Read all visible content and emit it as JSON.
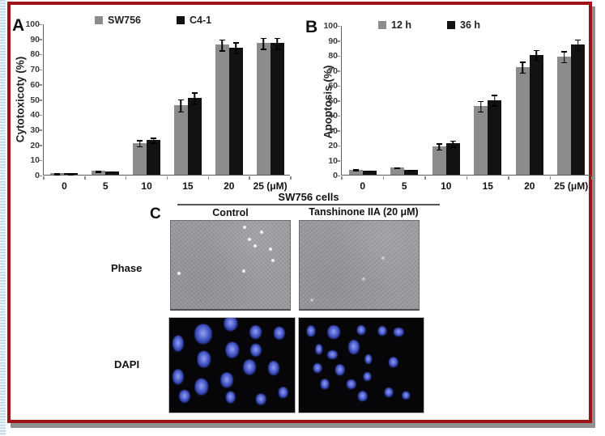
{
  "figure": {
    "border_color": "#9e1216",
    "shadow_color": "#8f8f8f",
    "background": "#ffffff",
    "edge_stripe_color": "#bcd6e6"
  },
  "chart_data": [
    {
      "type": "bar",
      "panel": "A",
      "title": "",
      "xlabel": "",
      "ylabel": "Cytotoxicoty (%)",
      "ylim": [
        0,
        100
      ],
      "ytick_step": 10,
      "grid": false,
      "legend_position": "top",
      "categories": [
        "0",
        "5",
        "10",
        "15",
        "20",
        "25 (μM)"
      ],
      "series": [
        {
          "name": "SW756",
          "color": "#8c8c8c",
          "values": [
            1,
            2.5,
            21,
            46,
            86,
            87
          ],
          "errors": [
            0.8,
            0.8,
            2.5,
            4.5,
            4,
            4
          ]
        },
        {
          "name": "C4-1",
          "color": "#121212",
          "values": [
            1,
            2,
            23,
            51,
            84,
            87
          ],
          "errors": [
            0.8,
            0.6,
            2,
            4,
            4,
            4
          ]
        }
      ]
    },
    {
      "type": "bar",
      "panel": "B",
      "title": "",
      "xlabel": "",
      "ylabel": "Apoptosis (%)",
      "ylim": [
        0,
        100
      ],
      "ytick_step": 10,
      "grid": false,
      "legend_position": "top",
      "categories": [
        "0",
        "5",
        "10",
        "15",
        "20",
        "25 (μM)"
      ],
      "series": [
        {
          "name": "12 h",
          "color": "#8c8c8c",
          "values": [
            3.5,
            5,
            19,
            46,
            72,
            79
          ],
          "errors": [
            0.8,
            0.6,
            2.5,
            4,
            4,
            4
          ]
        },
        {
          "name": "36 h",
          "color": "#121212",
          "values": [
            2.5,
            3.5,
            21,
            50,
            80,
            87
          ],
          "errors": [
            0.5,
            0.5,
            2.5,
            4,
            4,
            4
          ]
        }
      ]
    }
  ],
  "panel_c": {
    "label": "C",
    "group_title": "SW756 cells",
    "column_headers": [
      "Control",
      "Tanshinone IIA (20 μM)"
    ],
    "row_labels": [
      "Phase",
      "DAPI"
    ],
    "phase": {
      "base_color": "#9b9da2",
      "bright_spots_control": [
        [
          62,
          7
        ],
        [
          76,
          13
        ],
        [
          66,
          21
        ],
        [
          71,
          28
        ],
        [
          84,
          32
        ],
        [
          86,
          45
        ],
        [
          61,
          57
        ],
        [
          7,
          60
        ]
      ],
      "bright_spots_treated": [
        [
          54,
          66
        ],
        [
          70,
          42
        ],
        [
          10,
          90
        ]
      ]
    },
    "dapi": {
      "background_color": "#060609",
      "nucleus_color": "#5a6ad6",
      "control_nuclei": [
        [
          49,
          6,
          11,
          13
        ],
        [
          27,
          17,
          14,
          17
        ],
        [
          69,
          15,
          10,
          12
        ],
        [
          88,
          16,
          9,
          11
        ],
        [
          7,
          27,
          9,
          14
        ],
        [
          50,
          34,
          11,
          14
        ],
        [
          69,
          34,
          9,
          11
        ],
        [
          28,
          44,
          11,
          14
        ],
        [
          64,
          52,
          10,
          13
        ],
        [
          83,
          53,
          9,
          12
        ],
        [
          7,
          62,
          9,
          13
        ],
        [
          46,
          66,
          10,
          13
        ],
        [
          26,
          73,
          11,
          14
        ],
        [
          12,
          83,
          9,
          11
        ],
        [
          49,
          84,
          8,
          10
        ],
        [
          73,
          86,
          8,
          10
        ],
        [
          91,
          79,
          8,
          9
        ]
      ],
      "treated_nuclei": [
        [
          10,
          14,
          7,
          9
        ],
        [
          28,
          15,
          10,
          12
        ],
        [
          50,
          13,
          7,
          8
        ],
        [
          67,
          14,
          7,
          8
        ],
        [
          80,
          15,
          8,
          8
        ],
        [
          16,
          33,
          6,
          9
        ],
        [
          27,
          39,
          9,
          8
        ],
        [
          44,
          31,
          9,
          12
        ],
        [
          56,
          44,
          6,
          8
        ],
        [
          76,
          47,
          8,
          9
        ],
        [
          15,
          53,
          7,
          8
        ],
        [
          33,
          55,
          8,
          9
        ],
        [
          55,
          62,
          7,
          8
        ],
        [
          21,
          70,
          7,
          9
        ],
        [
          42,
          70,
          8,
          8
        ],
        [
          72,
          79,
          7,
          8
        ],
        [
          51,
          83,
          8,
          9
        ],
        [
          86,
          82,
          6,
          7
        ]
      ]
    }
  }
}
